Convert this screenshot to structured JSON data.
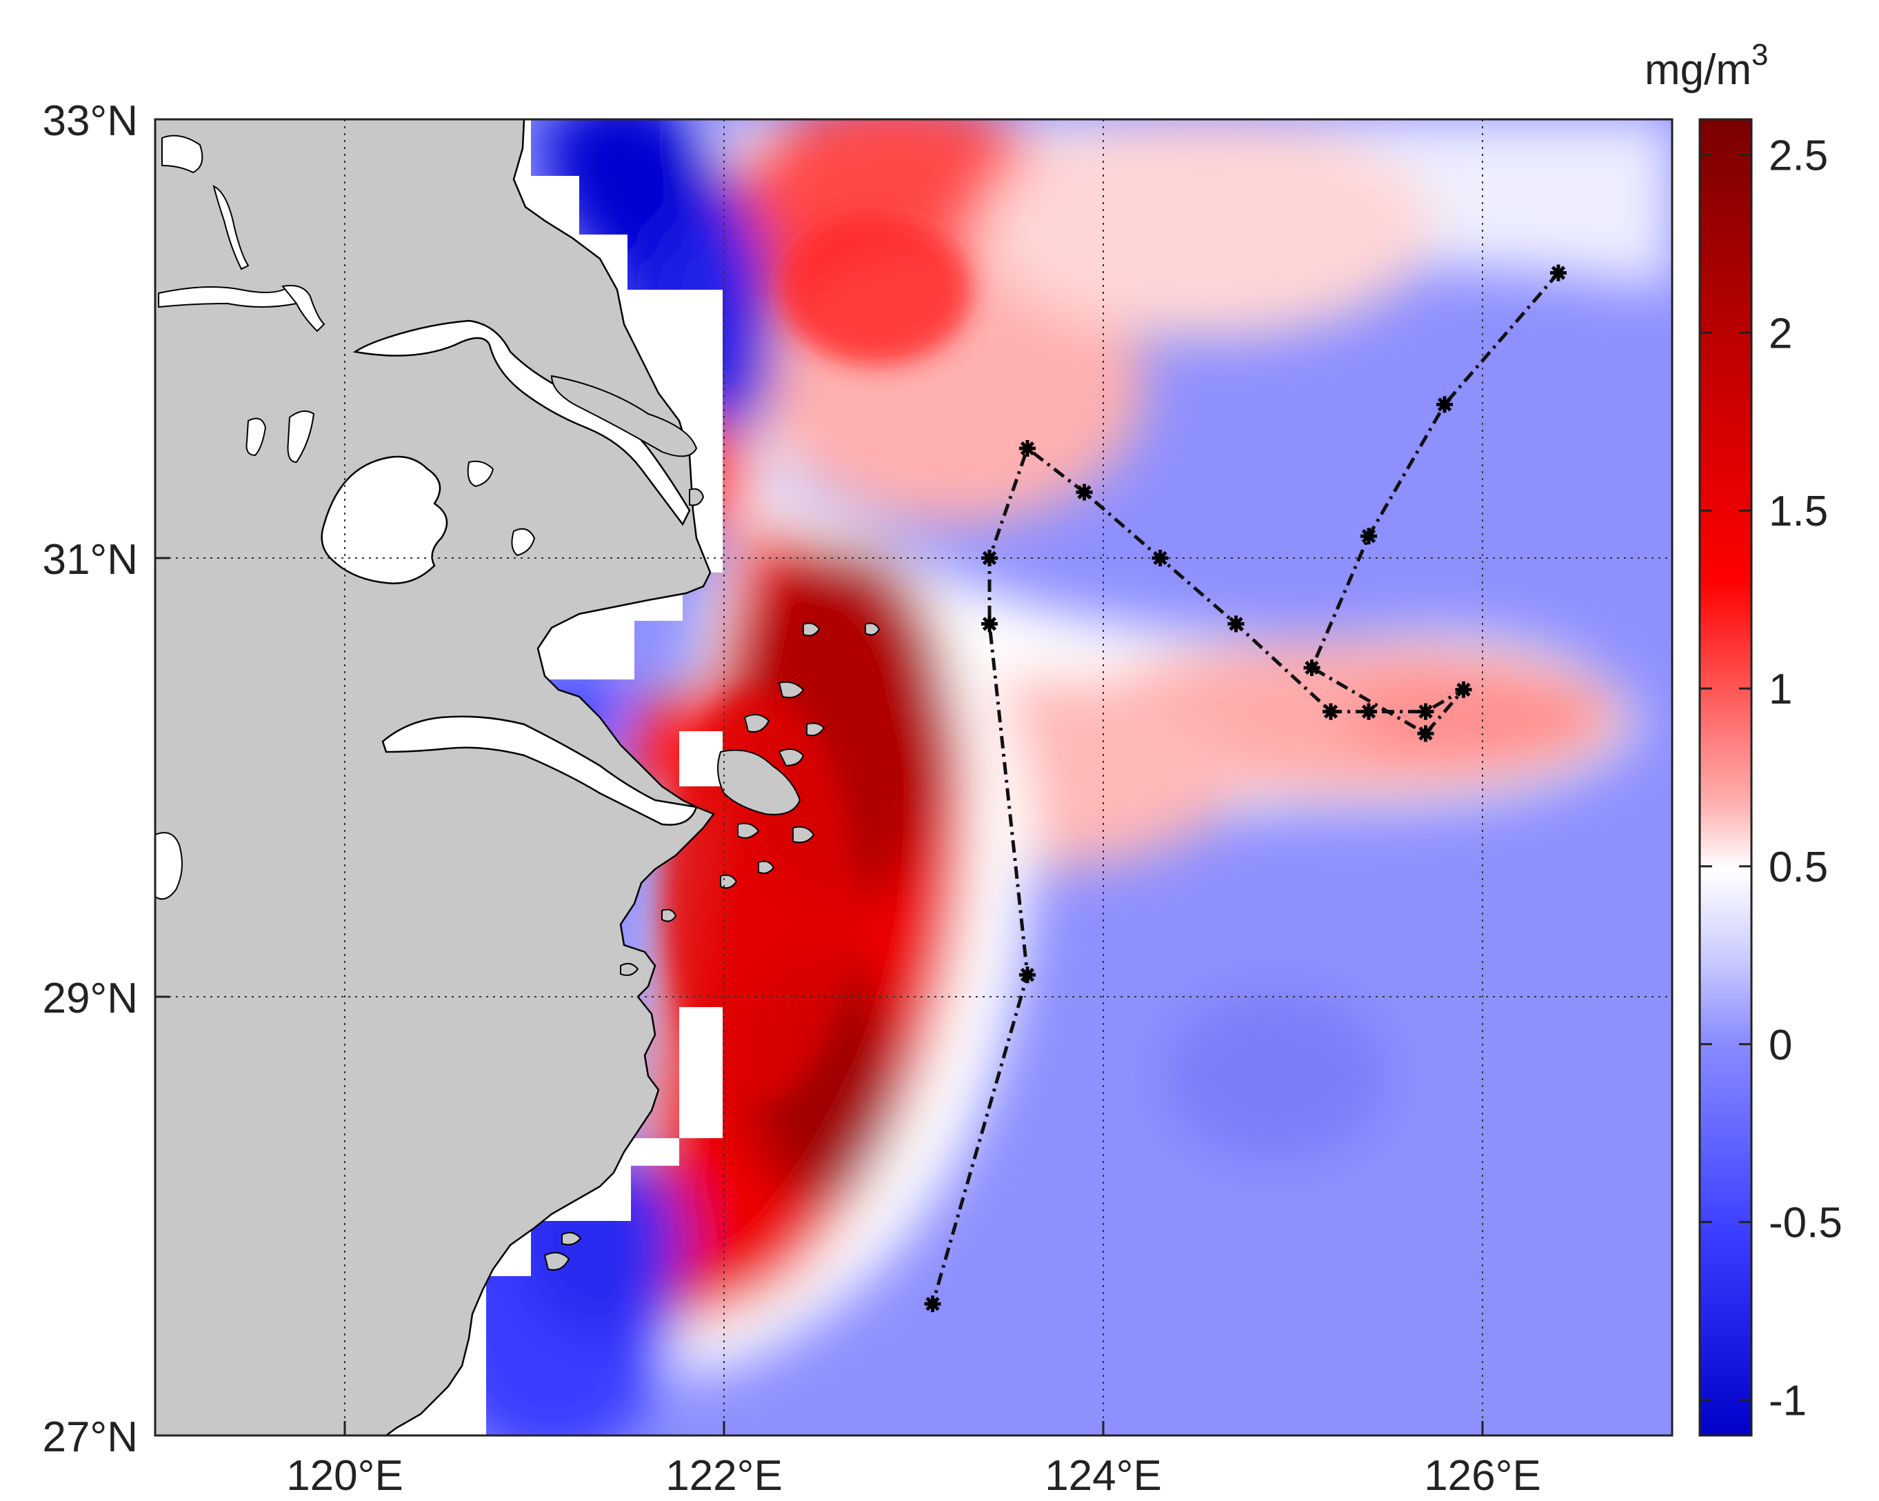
{
  "map": {
    "x_ticks": [
      "120°E",
      "122°E",
      "124°E",
      "126°E"
    ],
    "y_ticks": [
      "33°N",
      "31°N",
      "29°N",
      "27°N"
    ],
    "lon_range": [
      119,
      127
    ],
    "lat_range": [
      27,
      33
    ]
  },
  "colorbar": {
    "unit_base": "mg/m",
    "unit_exp": "3",
    "ticks": [
      "2.5",
      "2",
      "1.5",
      "1",
      "0.5",
      "0",
      "-0.5",
      "-1"
    ],
    "range": [
      -1.1,
      2.6
    ],
    "colors": {
      "low": "#0000c8",
      "zero": "#8a8cff",
      "mid": "#ffffff",
      "high": "#ff0000",
      "max": "#7a0000"
    }
  },
  "track": {
    "points_lonlat": [
      [
        126.4,
        32.3
      ],
      [
        125.8,
        31.7
      ],
      [
        125.4,
        31.1
      ],
      [
        125.1,
        30.5
      ],
      [
        125.7,
        30.2
      ],
      [
        125.9,
        30.4
      ],
      [
        125.7,
        30.3
      ],
      [
        125.4,
        30.3
      ],
      [
        125.2,
        30.3
      ],
      [
        124.7,
        30.7
      ],
      [
        124.3,
        31.0
      ],
      [
        123.9,
        31.3
      ],
      [
        123.6,
        31.5
      ],
      [
        123.4,
        31.0
      ],
      [
        123.4,
        30.7
      ],
      [
        123.6,
        29.1
      ],
      [
        123.1,
        27.6
      ]
    ]
  },
  "colors": {
    "land": "#c8c8c8",
    "coast": "#000000",
    "frame": "#222222"
  }
}
